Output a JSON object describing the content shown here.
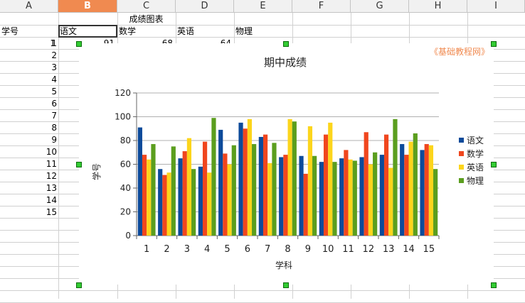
{
  "columns": [
    "A",
    "B",
    "C",
    "D",
    "E",
    "F",
    "G",
    "H",
    "I"
  ],
  "selected_column": "B",
  "row1": {
    "merged_title": "成绩图表"
  },
  "row2": [
    "学号",
    "语文",
    "数学",
    "英语",
    "物理"
  ],
  "row3_partial": [
    "1",
    "91",
    "68",
    "64"
  ],
  "row_numbers": [
    "1",
    "2",
    "3",
    "4",
    "5",
    "6",
    "7",
    "8",
    "9",
    "10",
    "11",
    "12",
    "13",
    "14",
    "15"
  ],
  "watermark": "《基础教程网》",
  "colors": {
    "yuwen": "#0c4a9a",
    "shuxue": "#f0461e",
    "yingyu": "#fcd51c",
    "wuli": "#5b9e1e"
  },
  "chart_data": {
    "type": "bar",
    "title": "期中成绩",
    "xlabel": "学科",
    "ylabel": "学号",
    "ylim": [
      0,
      120
    ],
    "yticks": [
      "0",
      "20",
      "40",
      "60",
      "80",
      "100",
      "120"
    ],
    "categories": [
      "1",
      "2",
      "3",
      "4",
      "5",
      "6",
      "7",
      "8",
      "9",
      "10",
      "11",
      "12",
      "13",
      "14",
      "15"
    ],
    "legend_position": "right",
    "grid": true,
    "series": [
      {
        "name": "语文",
        "values": [
          91,
          56,
          65,
          58,
          89,
          95,
          83,
          66,
          67,
          62,
          65,
          66,
          68,
          77,
          72
        ]
      },
      {
        "name": "数学",
        "values": [
          68,
          51,
          71,
          79,
          69,
          90,
          85,
          68,
          52,
          85,
          72,
          87,
          85,
          68,
          77
        ]
      },
      {
        "name": "英语",
        "values": [
          64,
          53,
          82,
          53,
          60,
          98,
          61,
          98,
          92,
          95,
          64,
          60,
          57,
          79,
          76
        ]
      },
      {
        "name": "物理",
        "values": [
          77,
          75,
          56,
          99,
          76,
          77,
          78,
          96,
          67,
          62,
          63,
          70,
          98,
          86,
          56
        ]
      }
    ]
  }
}
